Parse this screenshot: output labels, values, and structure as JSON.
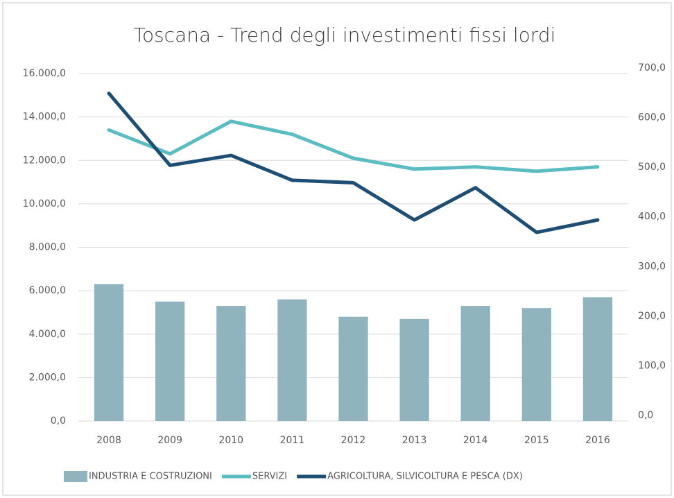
{
  "chart_data": {
    "type": "bar-line",
    "title": "Toscana - Trend degli investimenti fissi lordi",
    "categories": [
      "2008",
      "2009",
      "2010",
      "2011",
      "2012",
      "2013",
      "2014",
      "2015",
      "2016"
    ],
    "series": [
      {
        "name": "INDUSTRIA E COSTRUZIONI",
        "type": "bar",
        "color": "#8fb4be",
        "values": [
          6300,
          5500,
          5300,
          5600,
          4800,
          4700,
          5300,
          5200,
          5700
        ]
      },
      {
        "name": "SERVIZI",
        "type": "line",
        "color": "#5bbcc1",
        "values": [
          13400,
          12300,
          13800,
          13200,
          12100,
          11600,
          11700,
          11500,
          11700
        ]
      },
      {
        "name": "AGRICOLTURA, SILVICOLTURA E PESCA (DX)",
        "type": "line",
        "axis": "y2",
        "color": "#1f4e74",
        "values": [
          660,
          515,
          535,
          485,
          480,
          405,
          470,
          380,
          405
        ]
      }
    ],
    "ylim": [
      0,
      16000
    ],
    "yticks": [
      {
        "value": 0,
        "label": "0,0"
      },
      {
        "value": 2000,
        "label": "2.000,0"
      },
      {
        "value": 4000,
        "label": "4.000,0"
      },
      {
        "value": 6000,
        "label": "6.000,0"
      },
      {
        "value": 8000,
        "label": "8.000,0"
      },
      {
        "value": 10000,
        "label": "10.000,0"
      },
      {
        "value": 12000,
        "label": "12.000,0"
      },
      {
        "value": 14000,
        "label": "14.000,0"
      },
      {
        "value": 16000,
        "label": "16.000,0"
      }
    ],
    "y2lim": [
      0,
      700
    ],
    "y2ticks": [
      {
        "value": 0,
        "label": "0,0"
      },
      {
        "value": 100,
        "label": "100,0"
      },
      {
        "value": 200,
        "label": "200,0"
      },
      {
        "value": 300,
        "label": "300,0"
      },
      {
        "value": 400,
        "label": "400,0"
      },
      {
        "value": 500,
        "label": "500,0"
      },
      {
        "value": 600,
        "label": "600,0"
      },
      {
        "value": 700,
        "label": "700,0"
      }
    ],
    "grid": true,
    "legend": "bottom"
  }
}
